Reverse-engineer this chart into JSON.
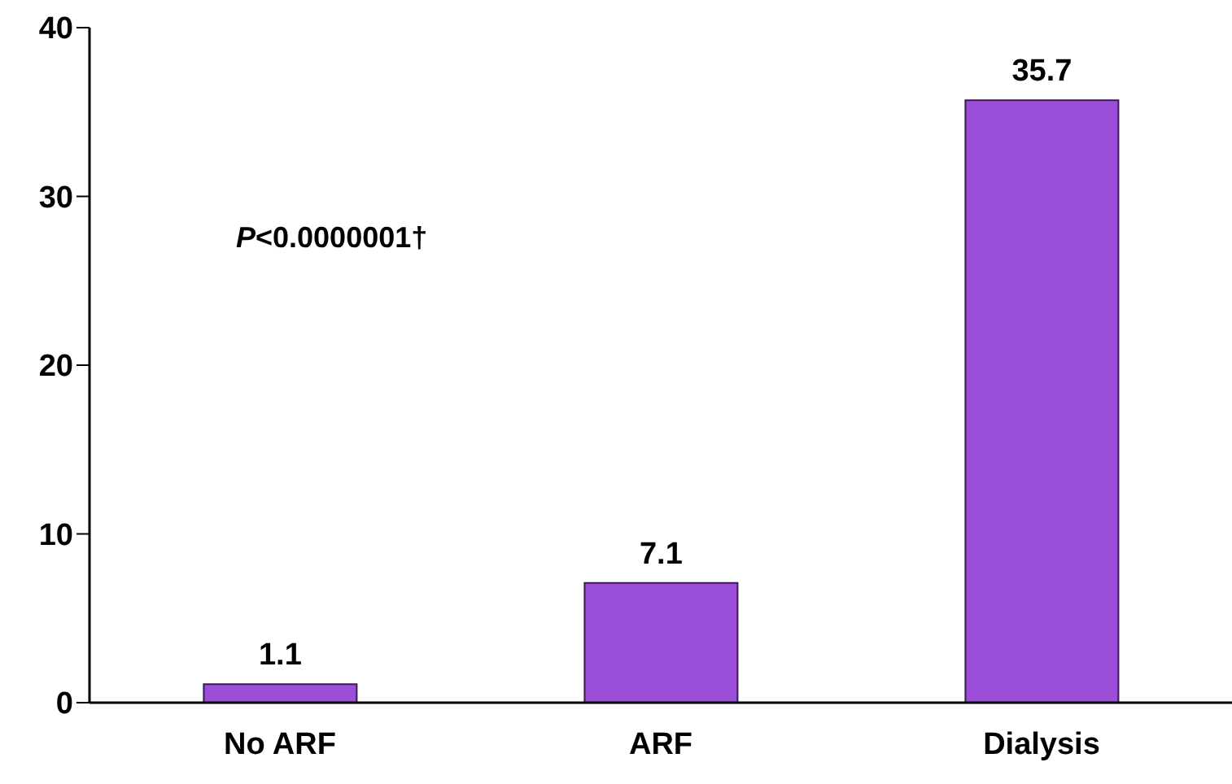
{
  "chart_data": {
    "type": "bar",
    "categories": [
      "No ARF",
      "ARF",
      "Dialysis"
    ],
    "values": [
      1.1,
      7.1,
      35.7
    ],
    "color": "#9b4fd9",
    "ylim": [
      0,
      40
    ],
    "yticks": [
      0,
      10,
      20,
      30,
      40
    ],
    "grid": false,
    "data_labels": true,
    "annotations": [
      "P<0.0000001†"
    ]
  }
}
